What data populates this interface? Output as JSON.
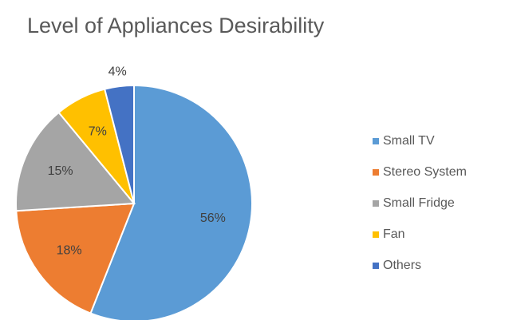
{
  "chart_data": {
    "type": "pie",
    "title": "Level of Appliances Desirability",
    "categories": [
      "Small TV",
      "Stereo System",
      "Small Fridge",
      "Fan",
      "Others"
    ],
    "values": [
      56,
      18,
      15,
      7,
      4
    ],
    "value_labels": [
      "56%",
      "18%",
      "15%",
      "7%",
      "4%"
    ],
    "colors": [
      "#5b9bd5",
      "#ed7d31",
      "#a5a5a5",
      "#ffc000",
      "#4472c4"
    ],
    "legend": "right"
  }
}
